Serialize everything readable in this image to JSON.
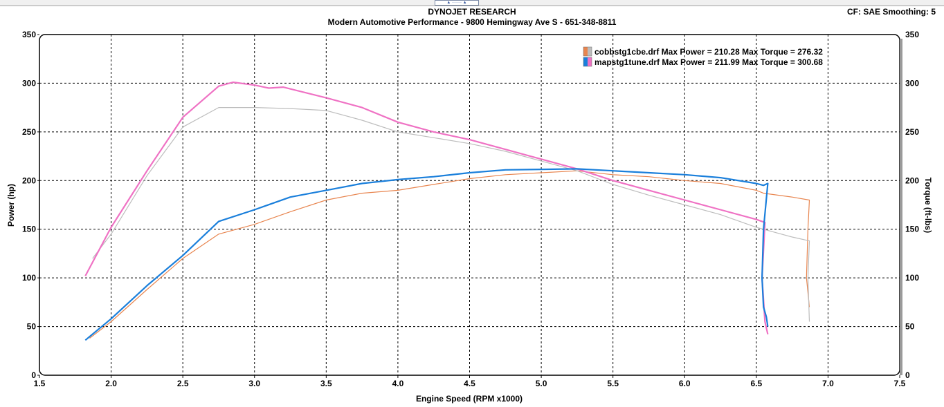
{
  "header": {
    "title": "DYNOJET RESEARCH",
    "subtitle": "Modern Automotive Performance - 9800 Hemingway Ave S - 651-348-8811",
    "settings": "CF: SAE  Smoothing: 5"
  },
  "chart_data": {
    "type": "line",
    "xlabel": "Engine Speed (RPM x1000)",
    "ylabel": "Power (hp)",
    "y2label": "Torque (ft-lbs)",
    "xlim": [
      1.5,
      7.5
    ],
    "ylim": [
      0,
      350
    ],
    "y2lim": [
      0,
      350
    ],
    "xticks": [
      "1.5",
      "2.0",
      "2.5",
      "3.0",
      "3.5",
      "4.0",
      "4.5",
      "5.0",
      "5.5",
      "6.0",
      "6.5",
      "7.0",
      "7.5"
    ],
    "yticks": [
      "0",
      "50",
      "100",
      "150",
      "200",
      "250",
      "300",
      "350"
    ],
    "grid": true,
    "legend_position": "top-right",
    "legend": [
      {
        "file": "cobbstg1cbe.drf",
        "text": "cobbstg1cbe.drf Max Power = 210.28 Max Torque = 276.32",
        "colors": [
          "#e8854f",
          "#bdbdbd"
        ]
      },
      {
        "file": "mapstg1tune.drf",
        "text": "mapstg1tune.drf Max Power = 211.99 Max Torque = 300.68",
        "colors": [
          "#1a7fdb",
          "#ef72c4"
        ]
      }
    ],
    "series": [
      {
        "file": "cobbstg1cbe.drf",
        "measure": "Power",
        "color": "#e8854f",
        "width": 1.2,
        "points": [
          [
            1.85,
            38
          ],
          [
            2.0,
            55
          ],
          [
            2.25,
            88
          ],
          [
            2.5,
            120
          ],
          [
            2.75,
            145
          ],
          [
            3.0,
            155
          ],
          [
            3.25,
            168
          ],
          [
            3.5,
            180
          ],
          [
            3.75,
            187
          ],
          [
            4.0,
            190
          ],
          [
            4.25,
            196
          ],
          [
            4.5,
            202
          ],
          [
            4.75,
            206
          ],
          [
            5.0,
            208
          ],
          [
            5.25,
            210
          ],
          [
            5.5,
            206
          ],
          [
            5.75,
            204
          ],
          [
            6.0,
            200
          ],
          [
            6.25,
            197
          ],
          [
            6.5,
            190
          ],
          [
            6.55,
            187
          ],
          [
            6.75,
            183
          ],
          [
            6.87,
            180
          ],
          [
            6.86,
            150
          ],
          [
            6.85,
            100
          ],
          [
            6.87,
            70
          ]
        ]
      },
      {
        "file": "cobbstg1cbe.drf",
        "measure": "Torque",
        "color": "#bdbdbd",
        "width": 1.2,
        "points": [
          [
            1.87,
            120
          ],
          [
            2.0,
            145
          ],
          [
            2.25,
            205
          ],
          [
            2.5,
            255
          ],
          [
            2.75,
            275
          ],
          [
            3.0,
            275
          ],
          [
            3.25,
            274
          ],
          [
            3.5,
            272
          ],
          [
            3.75,
            262
          ],
          [
            4.0,
            250
          ],
          [
            4.25,
            244
          ],
          [
            4.5,
            238
          ],
          [
            4.75,
            230
          ],
          [
            5.0,
            220
          ],
          [
            5.25,
            210
          ],
          [
            5.5,
            196
          ],
          [
            5.75,
            185
          ],
          [
            6.0,
            175
          ],
          [
            6.25,
            165
          ],
          [
            6.5,
            152
          ],
          [
            6.75,
            142
          ],
          [
            6.87,
            138
          ],
          [
            6.86,
            100
          ],
          [
            6.87,
            55
          ]
        ]
      },
      {
        "file": "mapstg1tune.drf",
        "measure": "Torque",
        "color": "#ef72c4",
        "width": 2.2,
        "points": [
          [
            1.82,
            102
          ],
          [
            2.0,
            152
          ],
          [
            2.25,
            210
          ],
          [
            2.5,
            265
          ],
          [
            2.75,
            297
          ],
          [
            2.85,
            301
          ],
          [
            3.0,
            298
          ],
          [
            3.1,
            295
          ],
          [
            3.2,
            296
          ],
          [
            3.5,
            285
          ],
          [
            3.75,
            275
          ],
          [
            4.0,
            260
          ],
          [
            4.25,
            250
          ],
          [
            4.5,
            242
          ],
          [
            4.75,
            232
          ],
          [
            5.0,
            222
          ],
          [
            5.25,
            212
          ],
          [
            5.5,
            200
          ],
          [
            5.75,
            190
          ],
          [
            6.0,
            180
          ],
          [
            6.25,
            170
          ],
          [
            6.5,
            160
          ],
          [
            6.56,
            157
          ],
          [
            6.54,
            100
          ],
          [
            6.56,
            55
          ],
          [
            6.58,
            42
          ]
        ]
      },
      {
        "file": "mapstg1tune.drf",
        "measure": "Power",
        "color": "#1a7fdb",
        "width": 2.2,
        "points": [
          [
            1.82,
            36
          ],
          [
            2.0,
            58
          ],
          [
            2.25,
            92
          ],
          [
            2.5,
            123
          ],
          [
            2.75,
            158
          ],
          [
            3.0,
            170
          ],
          [
            3.25,
            183
          ],
          [
            3.5,
            190
          ],
          [
            3.75,
            197
          ],
          [
            4.0,
            201
          ],
          [
            4.25,
            204
          ],
          [
            4.5,
            208
          ],
          [
            4.75,
            211
          ],
          [
            5.0,
            211.5
          ],
          [
            5.25,
            212
          ],
          [
            5.5,
            210
          ],
          [
            5.75,
            208
          ],
          [
            6.0,
            206
          ],
          [
            6.25,
            203
          ],
          [
            6.5,
            197
          ],
          [
            6.55,
            195
          ],
          [
            6.58,
            197
          ],
          [
            6.55,
            150
          ],
          [
            6.54,
            100
          ],
          [
            6.55,
            70
          ],
          [
            6.57,
            60
          ],
          [
            6.58,
            50
          ]
        ]
      }
    ]
  }
}
